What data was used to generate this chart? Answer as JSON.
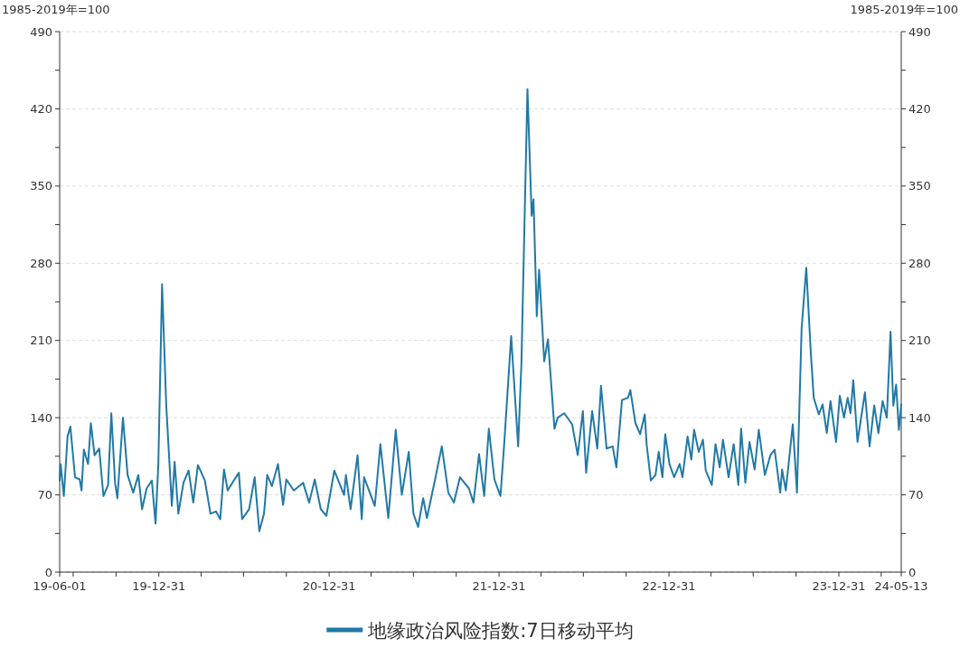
{
  "chart_data": {
    "type": "line",
    "ylabel": "1985-2019年=100",
    "y2label": "1985-2019年=100",
    "legend": "bottom",
    "grid": "y",
    "xlim": [
      "2019-06-01",
      "2024-05-13"
    ],
    "xticks": [
      {
        "value": "2019-06-01",
        "label": "19-06-01"
      },
      {
        "value": "2019-06-30",
        "label": null
      },
      {
        "value": "2019-09-30",
        "label": null
      },
      {
        "value": "2019-12-31",
        "label": "19-12-31"
      },
      {
        "value": "2020-03-31",
        "label": null
      },
      {
        "value": "2020-06-30",
        "label": null
      },
      {
        "value": "2020-09-30",
        "label": null
      },
      {
        "value": "2020-12-31",
        "label": "20-12-31"
      },
      {
        "value": "2021-03-31",
        "label": null
      },
      {
        "value": "2021-06-30",
        "label": null
      },
      {
        "value": "2021-09-30",
        "label": null
      },
      {
        "value": "2021-12-31",
        "label": "21-12-31"
      },
      {
        "value": "2022-03-31",
        "label": null
      },
      {
        "value": "2022-06-30",
        "label": null
      },
      {
        "value": "2022-09-30",
        "label": null
      },
      {
        "value": "2022-12-31",
        "label": "22-12-31"
      },
      {
        "value": "2023-03-31",
        "label": null
      },
      {
        "value": "2023-06-30",
        "label": null
      },
      {
        "value": "2023-09-30",
        "label": null
      },
      {
        "value": "2023-12-31",
        "label": "23-12-31"
      },
      {
        "value": "2024-03-31",
        "label": null
      },
      {
        "value": "2024-05-13",
        "label": "24-05-13"
      }
    ],
    "ylim": [
      0,
      490
    ],
    "yticks": [
      0,
      {
        "value": 35,
        "label": null
      },
      70,
      {
        "value": 105,
        "label": null
      },
      140,
      {
        "value": 175,
        "label": null
      },
      210,
      {
        "value": 245,
        "label": null
      },
      280,
      {
        "value": 315,
        "label": null
      },
      350,
      {
        "value": 385,
        "label": null
      },
      420,
      {
        "value": 455,
        "label": null
      },
      490
    ],
    "y2lim": [
      0,
      490
    ],
    "y2ticks": [
      0,
      {
        "value": 35,
        "label": null
      },
      70,
      {
        "value": 105,
        "label": null
      },
      140,
      {
        "value": 175,
        "label": null
      },
      210,
      {
        "value": 245,
        "label": null
      },
      280,
      {
        "value": 315,
        "label": null
      },
      350,
      {
        "value": 385,
        "label": null
      },
      420,
      {
        "value": 455,
        "label": null
      },
      490
    ],
    "x": [
      "2019-06-01",
      "2019-06-03",
      "2019-06-10",
      "2019-06-18",
      "2019-06-24",
      "2019-07-04",
      "2019-07-14",
      "2019-07-18",
      "2019-07-23",
      "2019-08-01",
      "2019-08-07",
      "2019-08-15",
      "2019-08-25",
      "2019-09-03",
      "2019-09-13",
      "2019-09-20",
      "2019-09-28",
      "2019-10-03",
      "2019-10-15",
      "2019-10-25",
      "2019-11-06",
      "2019-11-17",
      "2019-11-25",
      "2019-12-05",
      "2019-12-16",
      "2019-12-24",
      "2019-12-30",
      "2020-01-07",
      "2020-01-16",
      "2020-01-28",
      "2020-02-03",
      "2020-02-11",
      "2020-02-22",
      "2020-03-04",
      "2020-03-14",
      "2020-03-24",
      "2020-04-08",
      "2020-04-20",
      "2020-05-02",
      "2020-05-11",
      "2020-05-19",
      "2020-05-27",
      "2020-06-09",
      "2020-06-20",
      "2020-06-27",
      "2020-07-12",
      "2020-07-24",
      "2020-08-03",
      "2020-08-13",
      "2020-08-20",
      "2020-08-30",
      "2020-09-12",
      "2020-09-23",
      "2020-09-30",
      "2020-10-16",
      "2020-11-05",
      "2020-11-18",
      "2020-11-30",
      "2020-12-13",
      "2020-12-25",
      "2021-01-11",
      "2021-02-01",
      "2021-02-05",
      "2021-02-15",
      "2021-03-02",
      "2021-03-11",
      "2021-03-16",
      "2021-04-08",
      "2021-04-20",
      "2021-05-07",
      "2021-05-23",
      "2021-06-05",
      "2021-06-20",
      "2021-06-30",
      "2021-07-10",
      "2021-07-21",
      "2021-07-29",
      "2021-08-15",
      "2021-08-30",
      "2021-09-13",
      "2021-09-25",
      "2021-10-08",
      "2021-10-27",
      "2021-11-06",
      "2021-11-18",
      "2021-11-29",
      "2021-12-09",
      "2021-12-21",
      "2022-01-03",
      "2022-01-11",
      "2022-01-26",
      "2022-02-10",
      "2022-02-17",
      "2022-03-02",
      "2022-03-11",
      "2022-03-15",
      "2022-03-22",
      "2022-03-27",
      "2022-04-07",
      "2022-04-15",
      "2022-04-29",
      "2022-05-06",
      "2022-05-20",
      "2022-06-06",
      "2022-06-18",
      "2022-06-29",
      "2022-07-06",
      "2022-07-19",
      "2022-07-30",
      "2022-08-07",
      "2022-08-19",
      "2022-09-01",
      "2022-09-09",
      "2022-09-21",
      "2022-10-04",
      "2022-10-09",
      "2022-10-20",
      "2022-10-30",
      "2022-11-09",
      "2022-11-13",
      "2022-11-22",
      "2022-12-02",
      "2022-12-09",
      "2022-12-17",
      "2022-12-23",
      "2023-01-01",
      "2023-01-11",
      "2023-01-23",
      "2023-01-29",
      "2023-02-09",
      "2023-02-17",
      "2023-02-23",
      "2023-03-05",
      "2023-03-14",
      "2023-03-20",
      "2023-04-02",
      "2023-04-10",
      "2023-04-19",
      "2023-04-26",
      "2023-05-08",
      "2023-05-19",
      "2023-05-29",
      "2023-06-04",
      "2023-06-13",
      "2023-06-22",
      "2023-07-03",
      "2023-07-12",
      "2023-07-25",
      "2023-08-06",
      "2023-08-15",
      "2023-08-27",
      "2023-08-31",
      "2023-09-08",
      "2023-09-23",
      "2023-10-02",
      "2023-10-12",
      "2023-10-22",
      "2023-11-01",
      "2023-11-07",
      "2023-11-18",
      "2023-11-26",
      "2023-12-05",
      "2023-12-13",
      "2023-12-25",
      "2024-01-02",
      "2024-01-11",
      "2024-01-19",
      "2024-01-25",
      "2024-01-31",
      "2024-02-09",
      "2024-02-25",
      "2024-03-06",
      "2024-03-16",
      "2024-03-25",
      "2024-04-03",
      "2024-04-12",
      "2024-04-20",
      "2024-04-26",
      "2024-05-02",
      "2024-05-08",
      "2024-05-13"
    ],
    "series": [
      {
        "name": "地缘政治风险指数:7日移动平均",
        "color": "#2179a6",
        "values": [
          83,
          98,
          69,
          123,
          132,
          86,
          84,
          74,
          111,
          98,
          135,
          106,
          112,
          69,
          79,
          144,
          81,
          67,
          140,
          88,
          72,
          88,
          57,
          76,
          83,
          44,
          98,
          261,
          151,
          60,
          100,
          53,
          81,
          92,
          63,
          97,
          83,
          53,
          55,
          48,
          93,
          74,
          83,
          90,
          48,
          57,
          86,
          37,
          53,
          88,
          78,
          98,
          61,
          84,
          74,
          81,
          63,
          84,
          57,
          51,
          92,
          70,
          88,
          57,
          106,
          48,
          86,
          60,
          116,
          49,
          129,
          70,
          109,
          53,
          41,
          67,
          49,
          83,
          114,
          72,
          63,
          86,
          76,
          63,
          107,
          69,
          130,
          84,
          69,
          116,
          214,
          114,
          189,
          438,
          323,
          338,
          232,
          274,
          191,
          211,
          130,
          140,
          144,
          134,
          106,
          146,
          90,
          146,
          112,
          169,
          112,
          114,
          95,
          156,
          158,
          165,
          135,
          125,
          143,
          116,
          83,
          88,
          109,
          86,
          125,
          98,
          86,
          98,
          86,
          123,
          102,
          129,
          109,
          120,
          92,
          79,
          116,
          95,
          120,
          86,
          116,
          79,
          130,
          81,
          118,
          93,
          129,
          88,
          106,
          111,
          72,
          93,
          74,
          134,
          72,
          221,
          276,
          197,
          158,
          143,
          152,
          126,
          155,
          118,
          160,
          140,
          158,
          144,
          174,
          118,
          163,
          114,
          151,
          126,
          155,
          140,
          218,
          151,
          170,
          129,
          152
        ]
      }
    ]
  }
}
